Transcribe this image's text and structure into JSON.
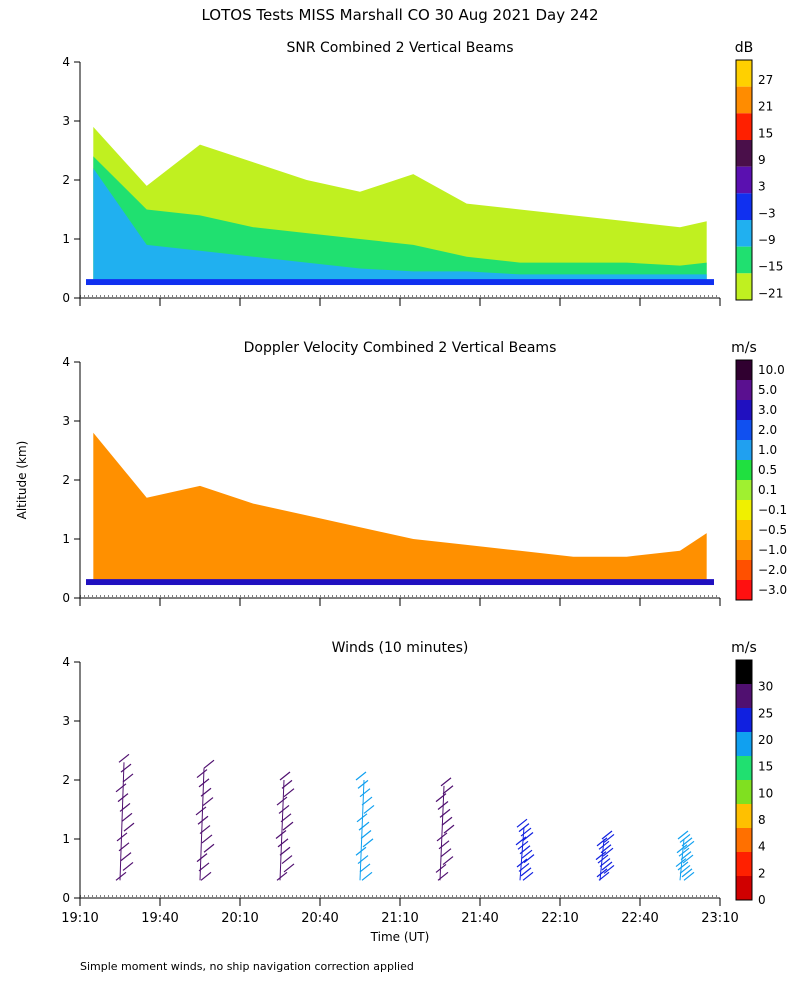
{
  "page_title": "LOTOS Tests MISS Marshall CO  30 Aug 2021 Day 242",
  "y_axis_label": "Altitude (km)",
  "x_axis_label": "Time (UT)",
  "footnote": "Simple moment winds, no ship navigation correction applied",
  "chart_data": [
    {
      "type": "heatmap",
      "title": "SNR Combined 2 Vertical Beams",
      "unit": "dB",
      "ylim": [
        0,
        4
      ],
      "yticks": [
        "0",
        "1",
        "2",
        "3",
        "4"
      ],
      "colorbar": {
        "labels": [
          "27",
          "21",
          "15",
          "9",
          "3",
          "−3",
          "−9",
          "−15",
          "−21"
        ],
        "colors": [
          "#ffd000",
          "#ff8c00",
          "#ff2000",
          "#4a0f4a",
          "#5a10b0",
          "#1030f0",
          "#20b0f0",
          "#20e070",
          "#c0f020"
        ]
      },
      "layers": [
        {
          "name": "weak-echo-top",
          "color": "#c0f020",
          "altitude_km": [
            2.9,
            1.9,
            2.6,
            2.3,
            2.0,
            1.8,
            2.1,
            1.6,
            1.5,
            1.4,
            1.3,
            1.2,
            1.3
          ]
        },
        {
          "name": "moderate-echo-top",
          "color": "#20e070",
          "altitude_km": [
            2.4,
            1.5,
            1.4,
            1.2,
            1.1,
            1.0,
            0.9,
            0.7,
            0.6,
            0.6,
            0.6,
            0.55,
            0.6
          ]
        },
        {
          "name": "strong-echo-top",
          "color": "#20b0f0",
          "altitude_km": [
            2.2,
            0.9,
            0.8,
            0.7,
            0.6,
            0.5,
            0.45,
            0.45,
            0.4,
            0.4,
            0.4,
            0.4,
            0.4
          ]
        }
      ],
      "layer_times": [
        "19:15",
        "19:35",
        "19:55",
        "20:15",
        "20:35",
        "20:55",
        "21:15",
        "21:35",
        "21:55",
        "22:15",
        "22:35",
        "22:55",
        "23:05"
      ]
    },
    {
      "type": "heatmap",
      "title": "Doppler Velocity Combined 2 Vertical Beams",
      "unit": "m/s",
      "ylim": [
        0,
        4
      ],
      "yticks": [
        "0",
        "1",
        "2",
        "3",
        "4"
      ],
      "colorbar": {
        "labels": [
          "10.0",
          "5.0",
          "3.0",
          "2.0",
          "1.0",
          "0.5",
          "0.1",
          "−0.1",
          "−0.5",
          "−1.0",
          "−2.0",
          "−3.0"
        ],
        "colors": [
          "#300030",
          "#5a1090",
          "#2010c0",
          "#1050f0",
          "#20a0f0",
          "#20e040",
          "#a0f030",
          "#f0f000",
          "#ffc000",
          "#ff9000",
          "#ff5000",
          "#ff1010"
        ]
      },
      "layers": [
        {
          "name": "echo-top",
          "color": "#ff9000",
          "altitude_km": [
            2.8,
            1.7,
            1.9,
            1.6,
            1.4,
            1.2,
            1.0,
            0.9,
            0.8,
            0.7,
            0.7,
            0.8,
            1.1
          ]
        }
      ],
      "layer_times": [
        "19:15",
        "19:35",
        "19:55",
        "20:15",
        "20:35",
        "20:55",
        "21:15",
        "21:35",
        "21:55",
        "22:15",
        "22:35",
        "22:55",
        "23:05"
      ]
    },
    {
      "type": "scatter",
      "title": "Winds (10 minutes)",
      "unit": "m/s",
      "ylim": [
        0,
        4
      ],
      "yticks": [
        "0",
        "1",
        "2",
        "3",
        "4"
      ],
      "xticks": [
        "19:10",
        "19:40",
        "20:10",
        "20:40",
        "21:10",
        "21:40",
        "22:10",
        "22:40",
        "23:10"
      ],
      "colorbar": {
        "labels": [
          "0",
          "2",
          "4",
          "8",
          "10",
          "15",
          "20",
          "25",
          "30"
        ],
        "colors": [
          "#000000",
          "#501070",
          "#1020e0",
          "#10a0f0",
          "#20e070",
          "#80e020",
          "#ffc000",
          "#ff7000",
          "#ff2000",
          "#d00000"
        ]
      },
      "profiles": [
        {
          "time": "19:25",
          "top_km": 2.3,
          "color": "#501070"
        },
        {
          "time": "19:55",
          "top_km": 2.2,
          "color": "#501070"
        },
        {
          "time": "20:25",
          "top_km": 2.0,
          "color": "#501070"
        },
        {
          "time": "20:55",
          "top_km": 2.0,
          "color": "#10a0f0"
        },
        {
          "time": "21:25",
          "top_km": 1.9,
          "color": "#501070"
        },
        {
          "time": "21:55",
          "top_km": 1.2,
          "color": "#1020e0"
        },
        {
          "time": "22:25",
          "top_km": 1.0,
          "color": "#1020e0"
        },
        {
          "time": "22:55",
          "top_km": 1.0,
          "color": "#10a0f0"
        }
      ]
    }
  ]
}
